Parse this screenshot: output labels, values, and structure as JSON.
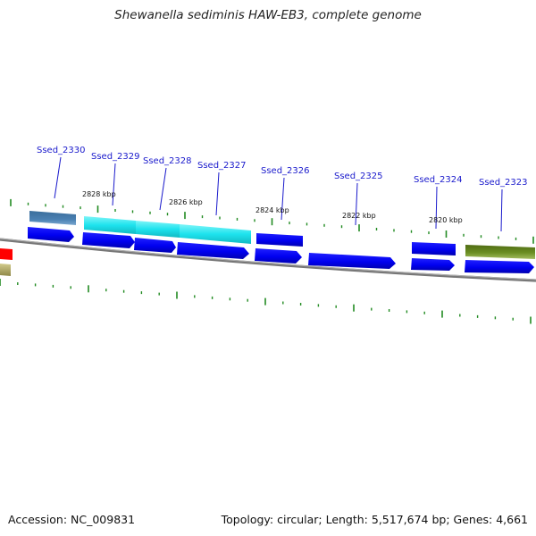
{
  "title": "Shewanella sediminis HAW-EB3, complete genome",
  "accession_text": "Accession: NC_009831",
  "summary_text": "Topology: circular; Length: 5,517,674 bp; Genes: 4,661",
  "scale_labels": [
    "2828 kbp",
    "2826 kbp",
    "2824 kbp",
    "2822 kbp",
    "2820 kbp"
  ],
  "gene_labels": [
    "Ssed_2330",
    "Ssed_2329",
    "Ssed_2328",
    "Ssed_2327",
    "Ssed_2326",
    "Ssed_2325",
    "Ssed_2324",
    "Ssed_2323"
  ],
  "colors": {
    "cds": "#0a0af0",
    "cds_light": "#6f6ff7",
    "cyan": "#1ee3ee",
    "steel": "#4a7fb0",
    "olive": "#6b8e23",
    "red": "#ff0000",
    "khaki": "#b5ad6a",
    "backbone": "#808080",
    "tick": "#228b22",
    "label": "#1a1acc"
  }
}
